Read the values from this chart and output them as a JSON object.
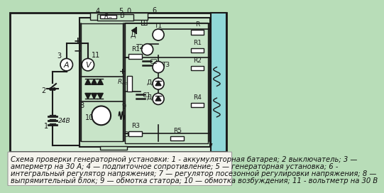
{
  "bg_color": "#b8ddb8",
  "caption_text_line1": "Схема проверки генераторной установки: 1 - аккумуляторная батарея; 2 выключатель; 3 —",
  "caption_text_line2": "амперметр на 30 А; 4 — подпиточное сопротивление; 5 — генераторная установка; 6 -",
  "caption_text_line3": "интегральный регулятор напряжения; 7 — регулятор посезонной регулировки напряжения; 8 —",
  "caption_text_line4": "выпрямительный блок; 9 — обмотка статора; 10 — обмотка возбуждения; 11 - вольтметр на 30 В",
  "caption_fontsize": 7.2,
  "right_strip_color": "#90d8d8"
}
